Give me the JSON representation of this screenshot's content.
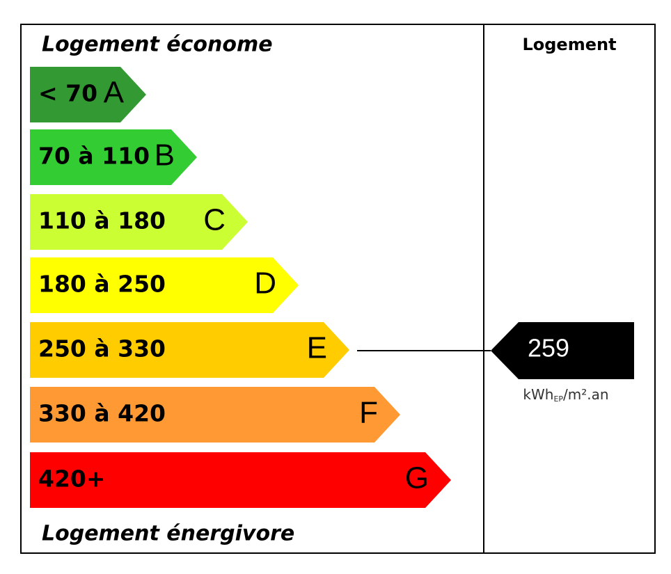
{
  "header": {
    "left_title": "Logement économe",
    "right_title": "Logement"
  },
  "classes": [
    {
      "range": "< 70",
      "letter": "A",
      "color": "#339933"
    },
    {
      "range": "70 à 110",
      "letter": "B",
      "color": "#33cc33"
    },
    {
      "range": "110 à 180",
      "letter": "C",
      "color": "#ccff33"
    },
    {
      "range": "180 à 250",
      "letter": "D",
      "color": "#ffff00"
    },
    {
      "range": "250 à 330",
      "letter": "E",
      "color": "#ffcc00"
    },
    {
      "range": "330 à 420",
      "letter": "F",
      "color": "#ff9933"
    },
    {
      "range": "420+",
      "letter": "G",
      "color": "#ff0000"
    }
  ],
  "footer": "Logement énergivore",
  "result": {
    "value": 259,
    "unit": {
      "main": "kWh",
      "sub": "EP",
      "rest": "/m².an"
    }
  }
}
